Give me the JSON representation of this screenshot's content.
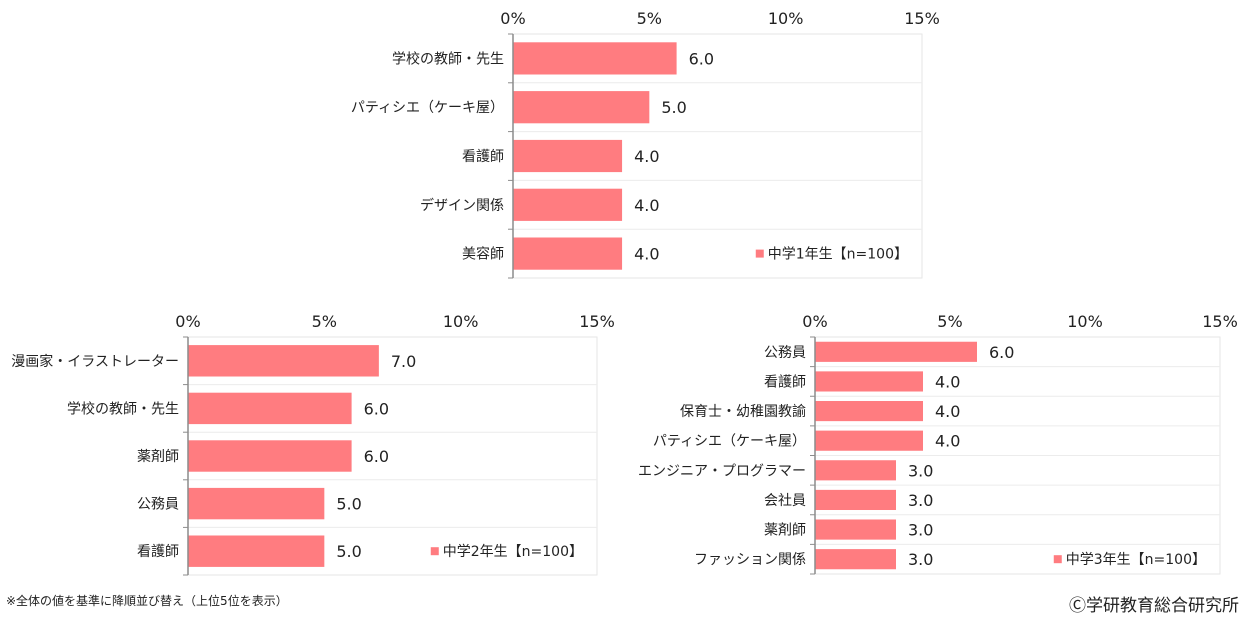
{
  "chart_data": [
    {
      "type": "bar",
      "orientation": "horizontal",
      "title": "",
      "categories": [
        "学校の教師・先生",
        "パティシエ（ケーキ屋）",
        "看護師",
        "デザイン関係",
        "美容師"
      ],
      "series": [
        {
          "name": "中学1年生【n=100】",
          "values": [
            6.0,
            5.0,
            4.0,
            4.0,
            4.0
          ]
        }
      ],
      "value_labels": [
        "6.0",
        "5.0",
        "4.0",
        "4.0",
        "4.0"
      ],
      "xlim": [
        0,
        15
      ],
      "x_ticks": [
        0,
        5,
        10,
        15
      ],
      "x_tick_labels": [
        "0%",
        "5%",
        "10%",
        "15%"
      ],
      "xlabel": "",
      "ylabel": "",
      "grid": true,
      "legend_position": "bottom-right",
      "color": "#ff7c80"
    },
    {
      "type": "bar",
      "orientation": "horizontal",
      "title": "",
      "categories": [
        "漫画家・イラストレーター",
        "学校の教師・先生",
        "薬剤師",
        "公務員",
        "看護師"
      ],
      "series": [
        {
          "name": "中学2年生【n=100】",
          "values": [
            7.0,
            6.0,
            6.0,
            5.0,
            5.0
          ]
        }
      ],
      "value_labels": [
        "7.0",
        "6.0",
        "6.0",
        "5.0",
        "5.0"
      ],
      "xlim": [
        0,
        15
      ],
      "x_ticks": [
        0,
        5,
        10,
        15
      ],
      "x_tick_labels": [
        "0%",
        "5%",
        "10%",
        "15%"
      ],
      "xlabel": "",
      "ylabel": "",
      "grid": true,
      "legend_position": "bottom-right",
      "color": "#ff7c80"
    },
    {
      "type": "bar",
      "orientation": "horizontal",
      "title": "",
      "categories": [
        "公務員",
        "看護師",
        "保育士・幼稚園教諭",
        "パティシエ（ケーキ屋）",
        "エンジニア・プログラマー",
        "会社員",
        "薬剤師",
        "ファッション関係"
      ],
      "series": [
        {
          "name": "中学3年生【n=100】",
          "values": [
            6.0,
            4.0,
            4.0,
            4.0,
            3.0,
            3.0,
            3.0,
            3.0
          ]
        }
      ],
      "value_labels": [
        "6.0",
        "4.0",
        "4.0",
        "4.0",
        "3.0",
        "3.0",
        "3.0",
        "3.0"
      ],
      "xlim": [
        0,
        15
      ],
      "x_ticks": [
        0,
        5,
        10,
        15
      ],
      "x_tick_labels": [
        "0%",
        "5%",
        "10%",
        "15%"
      ],
      "xlabel": "",
      "ylabel": "",
      "grid": true,
      "legend_position": "bottom-right",
      "color": "#ff7c80"
    }
  ],
  "footer": {
    "note": "※全体の値を基準に降順並び替え（上位5位を表示）",
    "copyright": "Ⓒ学研教育総合研究所"
  }
}
